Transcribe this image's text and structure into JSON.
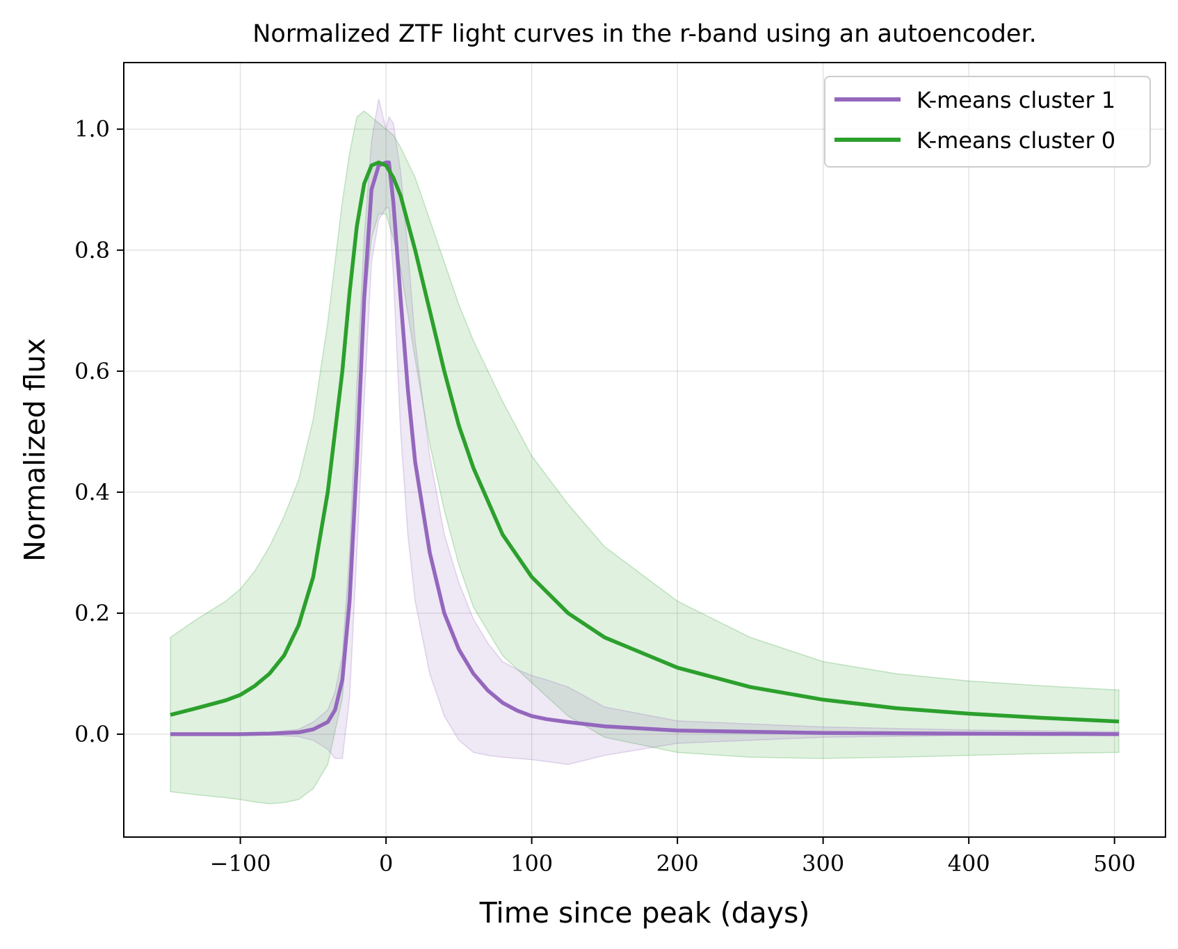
{
  "chart_data": {
    "type": "line",
    "title": "Normalized ZTF light curves in the r-band using an autoencoder.",
    "xlabel": "Time since peak (days)",
    "ylabel": "Normalized flux",
    "xlim": [
      -180,
      535
    ],
    "ylim": [
      -0.17,
      1.11
    ],
    "xticks": [
      -100,
      0,
      100,
      200,
      300,
      400,
      500
    ],
    "xtick_labels": [
      "−100",
      "0",
      "100",
      "200",
      "300",
      "400",
      "500"
    ],
    "yticks": [
      0.0,
      0.2,
      0.4,
      0.6,
      0.8,
      1.0
    ],
    "ytick_labels": [
      "0.0",
      "0.2",
      "0.4",
      "0.6",
      "0.8",
      "1.0"
    ],
    "grid": true,
    "legend_position": "top-right",
    "series": [
      {
        "name": "K-means cluster 1",
        "color": "#9467bd",
        "x": [
          -148,
          -120,
          -100,
          -80,
          -60,
          -50,
          -40,
          -35,
          -30,
          -25,
          -20,
          -15,
          -10,
          -5,
          0,
          2,
          5,
          10,
          15,
          20,
          30,
          40,
          50,
          60,
          70,
          80,
          90,
          100,
          110,
          125,
          150,
          200,
          300,
          400,
          503
        ],
        "y": [
          0.0,
          0.0,
          0.0,
          0.001,
          0.003,
          0.008,
          0.02,
          0.04,
          0.09,
          0.22,
          0.45,
          0.72,
          0.9,
          0.94,
          0.945,
          0.945,
          0.88,
          0.72,
          0.57,
          0.45,
          0.3,
          0.2,
          0.14,
          0.1,
          0.072,
          0.052,
          0.039,
          0.03,
          0.025,
          0.02,
          0.013,
          0.006,
          0.002,
          0.001,
          0.0
        ],
        "band_upper": [
          0.0,
          0.0,
          0.0,
          0.003,
          0.008,
          0.02,
          0.04,
          0.07,
          0.13,
          0.3,
          0.58,
          0.82,
          0.98,
          1.05,
          1.0,
          1.02,
          1.01,
          0.93,
          0.8,
          0.65,
          0.46,
          0.33,
          0.25,
          0.19,
          0.15,
          0.12,
          0.107,
          0.097,
          0.09,
          0.078,
          0.045,
          0.022,
          0.012,
          0.007,
          0.004
        ],
        "band_lower": [
          0.0,
          0.0,
          0.0,
          -0.001,
          -0.004,
          -0.01,
          -0.025,
          -0.04,
          -0.04,
          0.06,
          0.3,
          0.55,
          0.78,
          0.85,
          0.87,
          0.87,
          0.76,
          0.5,
          0.33,
          0.22,
          0.1,
          0.03,
          -0.01,
          -0.03,
          -0.035,
          -0.038,
          -0.04,
          -0.042,
          -0.045,
          -0.05,
          -0.035,
          -0.015,
          -0.005,
          -0.002,
          -0.001
        ]
      },
      {
        "name": "K-means cluster 0",
        "color": "#2ca02c",
        "x": [
          -148,
          -130,
          -110,
          -100,
          -90,
          -80,
          -70,
          -60,
          -50,
          -40,
          -30,
          -25,
          -20,
          -15,
          -10,
          -5,
          0,
          5,
          10,
          20,
          30,
          40,
          50,
          60,
          80,
          100,
          125,
          150,
          200,
          250,
          300,
          350,
          400,
          450,
          503
        ],
        "y": [
          0.032,
          0.043,
          0.056,
          0.065,
          0.08,
          0.1,
          0.13,
          0.18,
          0.26,
          0.4,
          0.6,
          0.73,
          0.84,
          0.91,
          0.94,
          0.945,
          0.94,
          0.92,
          0.89,
          0.8,
          0.7,
          0.6,
          0.51,
          0.44,
          0.33,
          0.26,
          0.2,
          0.16,
          0.11,
          0.078,
          0.057,
          0.043,
          0.034,
          0.027,
          0.021
        ],
        "band_upper": [
          0.16,
          0.19,
          0.22,
          0.24,
          0.27,
          0.31,
          0.36,
          0.42,
          0.52,
          0.68,
          0.88,
          0.96,
          1.02,
          1.03,
          1.02,
          1.01,
          1.0,
          0.99,
          0.97,
          0.92,
          0.85,
          0.78,
          0.71,
          0.65,
          0.55,
          0.46,
          0.38,
          0.31,
          0.22,
          0.16,
          0.12,
          0.1,
          0.088,
          0.08,
          0.073
        ],
        "band_lower": [
          -0.095,
          -0.1,
          -0.105,
          -0.108,
          -0.112,
          -0.115,
          -0.113,
          -0.108,
          -0.09,
          -0.05,
          0.06,
          0.2,
          0.48,
          0.7,
          0.82,
          0.86,
          0.86,
          0.82,
          0.77,
          0.62,
          0.48,
          0.37,
          0.28,
          0.21,
          0.13,
          0.085,
          0.03,
          -0.005,
          -0.03,
          -0.038,
          -0.04,
          -0.038,
          -0.035,
          -0.032,
          -0.03
        ]
      }
    ]
  }
}
